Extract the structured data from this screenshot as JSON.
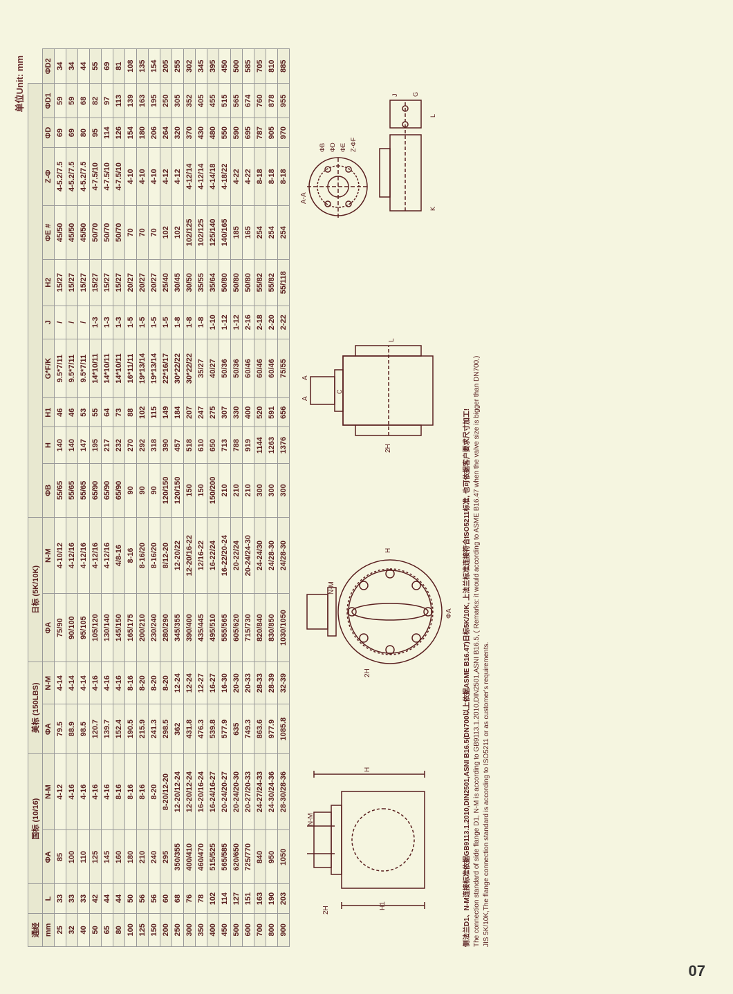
{
  "unit_label": "单位Unit: mm",
  "page_number": "07",
  "table": {
    "header_groups": [
      {
        "label": "通经",
        "cols": 1
      },
      {
        "label": "",
        "cols": 1
      },
      {
        "label": "国标 (10/16)",
        "cols": 2
      },
      {
        "label": "美标 (150LBS)",
        "cols": 2
      },
      {
        "label": "日标 (5K/10K)",
        "cols": 2
      },
      {
        "label": "",
        "cols": 10
      }
    ],
    "columns": [
      "mm",
      "L",
      "ΦA",
      "N-M",
      "ΦA",
      "N-M",
      "ΦA",
      "N-M",
      "ΦB",
      "H",
      "H1",
      "G*F/K",
      "J",
      "H2",
      "ΦE #",
      "Z-Φ",
      "ΦD",
      "ΦD1",
      "ΦD2"
    ],
    "rows": [
      [
        "25",
        "33",
        "85",
        "4-12",
        "79.5",
        "4-14",
        "75/90",
        "4-10/12",
        "55/65",
        "140",
        "46",
        "9.5*7/11",
        "/",
        "15/27",
        "45/50",
        "4-5.2/7.5",
        "69",
        "59",
        "34"
      ],
      [
        "32",
        "33",
        "100",
        "4-16",
        "88.9",
        "4-14",
        "90/100",
        "4-12/16",
        "55/65",
        "140",
        "46",
        "9.5*7/11",
        "/",
        "15/27",
        "45/50",
        "4-5.2/7.5",
        "69",
        "59",
        "34"
      ],
      [
        "40",
        "33",
        "110",
        "4-16",
        "98.5",
        "4-14",
        "95/105",
        "4-12/16",
        "55/65",
        "147",
        "53",
        "9.5*7/11",
        "/",
        "15/27",
        "45/50",
        "4-5.2/7.5",
        "80",
        "68",
        "44"
      ],
      [
        "50",
        "42",
        "125",
        "4-16",
        "120.7",
        "4-16",
        "105/120",
        "4-12/16",
        "65/90",
        "195",
        "55",
        "14*10/11",
        "1-3",
        "15/27",
        "50/70",
        "4-7.5/10",
        "95",
        "82",
        "55"
      ],
      [
        "65",
        "44",
        "145",
        "4-16",
        "139.7",
        "4-16",
        "130/140",
        "4-12/16",
        "65/90",
        "217",
        "64",
        "14*10/11",
        "1-3",
        "15/27",
        "50/70",
        "4-7.5/10",
        "114",
        "97",
        "69"
      ],
      [
        "80",
        "44",
        "160",
        "8-16",
        "152.4",
        "4-16",
        "145/150",
        "4/8-16",
        "65/90",
        "232",
        "73",
        "14*10/11",
        "1-3",
        "15/27",
        "50/70",
        "4-7.5/10",
        "126",
        "113",
        "81"
      ],
      [
        "100",
        "50",
        "180",
        "8-16",
        "190.5",
        "8-16",
        "165/175",
        "8-16",
        "90",
        "270",
        "88",
        "16*11/11",
        "1-5",
        "20/27",
        "70",
        "4-10",
        "154",
        "139",
        "108"
      ],
      [
        "125",
        "56",
        "210",
        "8-16",
        "215.9",
        "8-20",
        "200/210",
        "8-16/20",
        "90",
        "292",
        "102",
        "19*13/14",
        "1-5",
        "20/27",
        "70",
        "4-10",
        "180",
        "163",
        "135"
      ],
      [
        "150",
        "56",
        "240",
        "8-20",
        "241.3",
        "8-20",
        "230/240",
        "8-16/20",
        "90",
        "318",
        "115",
        "19*13/14",
        "1-5",
        "20/27",
        "70",
        "4-10",
        "206",
        "195",
        "154"
      ],
      [
        "200",
        "60",
        "295",
        "8-20/12-20",
        "298.5",
        "8-20",
        "280/290",
        "8/12-20",
        "120/150",
        "390",
        "149",
        "22*16/17",
        "1-5",
        "25/40",
        "102",
        "4-12",
        "264",
        "250",
        "205"
      ],
      [
        "250",
        "68",
        "350/355",
        "12-20/12-24",
        "362",
        "12-24",
        "345/355",
        "12-20/22",
        "120/150",
        "457",
        "184",
        "30*22/22",
        "1-8",
        "30/45",
        "102",
        "4-12",
        "320",
        "305",
        "255"
      ],
      [
        "300",
        "76",
        "400/410",
        "12-20/12-24",
        "431.8",
        "12-24",
        "390/400",
        "12-20/16-22",
        "150",
        "518",
        "207",
        "30*22/22",
        "1-8",
        "30/50",
        "102/125",
        "4-12/14",
        "370",
        "352",
        "302"
      ],
      [
        "350",
        "78",
        "460/470",
        "16-20/16-24",
        "476.3",
        "12-27",
        "435/445",
        "12/16-22",
        "150",
        "610",
        "247",
        "35/27",
        "1-8",
        "35/55",
        "102/125",
        "4-12/14",
        "430",
        "405",
        "345"
      ],
      [
        "400",
        "102",
        "515/525",
        "16-24/16-27",
        "539.8",
        "16-27",
        "495/510",
        "16-22/24",
        "150/200",
        "650",
        "275",
        "40/27",
        "1-10",
        "35/64",
        "125/140",
        "4-14/18",
        "480",
        "455",
        "395"
      ],
      [
        "450",
        "114",
        "565/585",
        "20-24/20-27",
        "577.9",
        "16-30",
        "555/565",
        "16-22/20-24",
        "210",
        "713",
        "307",
        "50/36",
        "1-12",
        "50/80",
        "140/165",
        "4-18/22",
        "550",
        "515",
        "450"
      ],
      [
        "500",
        "127",
        "620/650",
        "20-24/20-30",
        "635",
        "20-30",
        "605/620",
        "20-22/24",
        "210",
        "788",
        "330",
        "50/36",
        "1-12",
        "50/80",
        "185",
        "4-22",
        "590",
        "565",
        "500"
      ],
      [
        "600",
        "151",
        "725/770",
        "20-27/20-33",
        "749.3",
        "20-33",
        "715/730",
        "20-24/24-30",
        "210",
        "919",
        "400",
        "60/46",
        "2-16",
        "50/80",
        "165",
        "4-22",
        "695",
        "674",
        "585"
      ],
      [
        "700",
        "163",
        "840",
        "24-27/24-33",
        "863.6",
        "28-33",
        "820/840",
        "24-24/30",
        "300",
        "1144",
        "520",
        "60/46",
        "2-18",
        "55/82",
        "254",
        "8-18",
        "787",
        "760",
        "705"
      ],
      [
        "800",
        "190",
        "950",
        "24-30/24-36",
        "977.9",
        "28-39",
        "830/850",
        "24/28-30",
        "300",
        "1263",
        "591",
        "60/46",
        "2-20",
        "55/82",
        "254",
        "8-18",
        "905",
        "878",
        "810"
      ],
      [
        "900",
        "203",
        "1050",
        "28-30/28-36",
        "1085.8",
        "32-39",
        "1030/1050",
        "24/28-30",
        "300",
        "1376",
        "656",
        "75/55",
        "2-22",
        "55/118",
        "254",
        "8-18",
        "970",
        "955",
        "885"
      ]
    ]
  },
  "diagrams": {
    "labels": [
      "H",
      "2H",
      "H1",
      "N-M",
      "ΦA",
      "A-A",
      "ΦB",
      "ΦD",
      "ΦE",
      "ΦF",
      "Z-ΦF",
      "C",
      "K",
      "G",
      "L"
    ]
  },
  "notes": {
    "line1": "侧法兰D1、N-M连接标准依据GB9113.1.2010,DIN2501,ASNI B16.5(DN700以上依据ASME B16.47)日标5K/10K, 上法兰标准连接符合ISO5211标准, 也可依据客户要求尺寸加工!",
    "line2": "The connection standard of side flange D1, N-M is according to GB9113.1.2010,DIN2501,ASNI B16.5, ( Remarks: it would according to ASME B16.47 when the valve size is bigger than DN700,)",
    "line3": "JIS 5K/10K,The flange connection standard is according to ISO5211 or as customer's requirements."
  },
  "colors": {
    "text": "#5a2020",
    "border": "#999",
    "bg": "#f5f5e0",
    "alt_row": "#eeeed8"
  }
}
